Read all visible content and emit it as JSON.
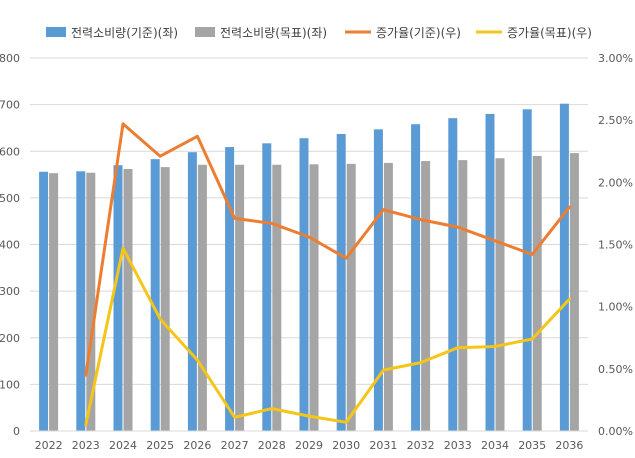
{
  "chart_data": {
    "type": "bar",
    "categories": [
      "2022",
      "2023",
      "2024",
      "2025",
      "2026",
      "2027",
      "2028",
      "2029",
      "2030",
      "2031",
      "2032",
      "2033",
      "2034",
      "2035",
      "2036"
    ],
    "y_left": {
      "ylim": [
        0,
        800
      ],
      "ticks": [
        0,
        100,
        200,
        300,
        400,
        500,
        600,
        700,
        800
      ]
    },
    "y_right": {
      "ylim": [
        0,
        3
      ],
      "ticks": [
        "0.00%",
        "0.50%",
        "1.00%",
        "1.50%",
        "2.00%",
        "2.50%",
        "3.00%"
      ]
    },
    "bar_series": [
      {
        "name": "전력소비량(기준)(좌)",
        "color": "#5b9bd5",
        "values": [
          556,
          557,
          570,
          583,
          598,
          609,
          617,
          628,
          637,
          647,
          658,
          671,
          680,
          690,
          702
        ]
      },
      {
        "name": "전력소비량(목표)(좌)",
        "color": "#a5a5a5",
        "values": [
          553,
          554,
          562,
          566,
          571,
          571,
          571,
          572,
          573,
          575,
          579,
          581,
          585,
          590,
          596
        ]
      }
    ],
    "line_series": [
      {
        "name": "증가율(기준)(우)",
        "color": "#ed7d31",
        "values": [
          null,
          0.45,
          2.47,
          2.21,
          2.37,
          1.71,
          1.67,
          1.56,
          1.39,
          1.78,
          1.7,
          1.64,
          1.53,
          1.42,
          1.8
        ]
      },
      {
        "name": "증가율(목표)(우)",
        "color": "#f5c518",
        "values": [
          null,
          0.05,
          1.47,
          0.9,
          0.57,
          0.11,
          0.18,
          0.12,
          0.07,
          0.49,
          0.55,
          0.67,
          0.68,
          0.74,
          1.06
        ]
      }
    ],
    "legend_position": "top",
    "grid": true
  }
}
